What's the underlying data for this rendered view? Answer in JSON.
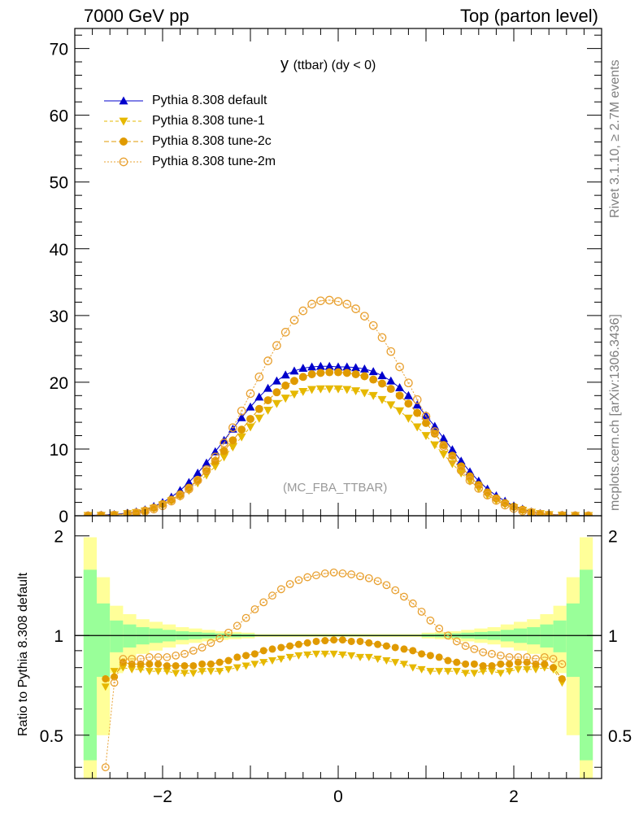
{
  "header": {
    "left": "7000 GeV pp",
    "right": "Top (parton level)"
  },
  "side_labels": {
    "rivet": "Rivet 3.1.10, ≥ 2.7M events",
    "mcplots": "mcplots.cern.ch [arXiv:1306.3436]"
  },
  "chart_data": [
    {
      "type": "line",
      "title": "y",
      "title_sub": "(ttbar) (dy < 0)",
      "annotation": "(MC_FBA_TTBAR)",
      "xlim": [
        -3.0,
        3.0
      ],
      "ylim": [
        0,
        73
      ],
      "yticks": [
        0,
        10,
        20,
        30,
        40,
        50,
        60,
        70
      ],
      "xticks": [
        -2,
        0,
        2
      ],
      "legend_position": "top-left",
      "series": [
        {
          "name": "Pythia 8.308 default",
          "color": "#0000cc",
          "marker": "triangle-up",
          "x": [
            -2.85,
            -2.7,
            -2.55,
            -2.4,
            -2.3,
            -2.2,
            -2.1,
            -2.0,
            -1.9,
            -1.8,
            -1.7,
            -1.6,
            -1.5,
            -1.4,
            -1.3,
            -1.2,
            -1.1,
            -1.0,
            -0.9,
            -0.8,
            -0.7,
            -0.6,
            -0.5,
            -0.4,
            -0.3,
            -0.2,
            -0.1,
            0.0,
            0.1,
            0.2,
            0.3,
            0.4,
            0.5,
            0.6,
            0.7,
            0.8,
            0.9,
            1.0,
            1.1,
            1.2,
            1.3,
            1.4,
            1.5,
            1.6,
            1.7,
            1.8,
            1.9,
            2.0,
            2.1,
            2.2,
            2.3,
            2.4,
            2.55,
            2.7,
            2.85
          ],
          "y": [
            0.05,
            0.1,
            0.2,
            0.4,
            0.6,
            0.9,
            1.4,
            2.0,
            2.8,
            3.8,
            5.0,
            6.4,
            7.9,
            9.6,
            11.3,
            13.0,
            14.7,
            16.3,
            17.8,
            19.1,
            20.2,
            21.1,
            21.7,
            22.1,
            22.3,
            22.4,
            22.4,
            22.3,
            22.3,
            22.2,
            22.0,
            21.6,
            21.0,
            20.2,
            19.2,
            18.0,
            16.6,
            15.0,
            13.4,
            11.6,
            9.9,
            8.2,
            6.6,
            5.2,
            4.0,
            3.0,
            2.2,
            1.5,
            1.0,
            0.6,
            0.35,
            0.2,
            0.1,
            0.05,
            0.02
          ]
        },
        {
          "name": "Pythia 8.308 tune-1",
          "color": "#e6b800",
          "marker": "triangle-down",
          "x": [
            -2.85,
            -2.7,
            -2.55,
            -2.4,
            -2.3,
            -2.2,
            -2.1,
            -2.0,
            -1.9,
            -1.8,
            -1.7,
            -1.6,
            -1.5,
            -1.4,
            -1.3,
            -1.2,
            -1.1,
            -1.0,
            -0.9,
            -0.8,
            -0.7,
            -0.6,
            -0.5,
            -0.4,
            -0.3,
            -0.2,
            -0.1,
            0.0,
            0.1,
            0.2,
            0.3,
            0.4,
            0.5,
            0.6,
            0.7,
            0.8,
            0.9,
            1.0,
            1.1,
            1.2,
            1.3,
            1.4,
            1.5,
            1.6,
            1.7,
            1.8,
            1.9,
            2.0,
            2.1,
            2.2,
            2.3,
            2.4,
            2.55,
            2.7,
            2.85
          ],
          "y": [
            0.02,
            0.05,
            0.12,
            0.3,
            0.45,
            0.7,
            1.1,
            1.6,
            2.2,
            2.9,
            3.8,
            4.9,
            6.1,
            7.4,
            8.8,
            10.3,
            11.8,
            13.3,
            14.6,
            15.8,
            16.8,
            17.6,
            18.2,
            18.6,
            18.9,
            19.0,
            19.0,
            19.0,
            18.9,
            18.7,
            18.4,
            18.0,
            17.4,
            16.6,
            15.7,
            14.6,
            13.3,
            12.0,
            10.6,
            9.2,
            7.8,
            6.4,
            5.2,
            4.1,
            3.1,
            2.3,
            1.7,
            1.2,
            0.8,
            0.5,
            0.3,
            0.15,
            0.07,
            0.03,
            0.01
          ]
        },
        {
          "name": "Pythia 8.308 tune-2c",
          "color": "#e09a00",
          "marker": "circle-filled",
          "x": [
            -2.85,
            -2.7,
            -2.55,
            -2.4,
            -2.3,
            -2.2,
            -2.1,
            -2.0,
            -1.9,
            -1.8,
            -1.7,
            -1.6,
            -1.5,
            -1.4,
            -1.3,
            -1.2,
            -1.1,
            -1.0,
            -0.9,
            -0.8,
            -0.7,
            -0.6,
            -0.5,
            -0.4,
            -0.3,
            -0.2,
            -0.1,
            0.0,
            0.1,
            0.2,
            0.3,
            0.4,
            0.5,
            0.6,
            0.7,
            0.8,
            0.9,
            1.0,
            1.1,
            1.2,
            1.3,
            1.4,
            1.5,
            1.6,
            1.7,
            1.8,
            1.9,
            2.0,
            2.1,
            2.2,
            2.3,
            2.4,
            2.55,
            2.7,
            2.85
          ],
          "y": [
            0.02,
            0.06,
            0.15,
            0.32,
            0.5,
            0.78,
            1.2,
            1.75,
            2.4,
            3.2,
            4.2,
            5.4,
            6.7,
            8.2,
            9.7,
            11.3,
            12.9,
            14.5,
            16.0,
            17.3,
            18.5,
            19.5,
            20.2,
            20.8,
            21.2,
            21.4,
            21.5,
            21.5,
            21.4,
            21.2,
            20.9,
            20.4,
            19.8,
            19.0,
            18.0,
            16.8,
            15.4,
            13.9,
            12.3,
            10.6,
            9.0,
            7.4,
            5.9,
            4.6,
            3.5,
            2.6,
            1.9,
            1.35,
            0.9,
            0.55,
            0.3,
            0.15,
            0.07,
            0.03,
            0.01
          ]
        },
        {
          "name": "Pythia 8.308 tune-2m",
          "color": "#e8a030",
          "marker": "circle-open",
          "x": [
            -2.85,
            -2.7,
            -2.55,
            -2.4,
            -2.3,
            -2.2,
            -2.1,
            -2.0,
            -1.9,
            -1.8,
            -1.7,
            -1.6,
            -1.5,
            -1.4,
            -1.3,
            -1.2,
            -1.1,
            -1.0,
            -0.9,
            -0.8,
            -0.7,
            -0.6,
            -0.5,
            -0.4,
            -0.3,
            -0.2,
            -0.1,
            0.0,
            0.1,
            0.2,
            0.3,
            0.4,
            0.5,
            0.6,
            0.7,
            0.8,
            0.9,
            1.0,
            1.1,
            1.2,
            1.3,
            1.4,
            1.5,
            1.6,
            1.7,
            1.8,
            1.9,
            2.0,
            2.1,
            2.2,
            2.3,
            2.4,
            2.55,
            2.7,
            2.85
          ],
          "y": [
            0.01,
            0.04,
            0.1,
            0.25,
            0.4,
            0.65,
            1.0,
            1.5,
            2.2,
            3.0,
            4.0,
            5.3,
            6.9,
            8.8,
            10.9,
            13.2,
            15.7,
            18.3,
            20.8,
            23.2,
            25.5,
            27.5,
            29.3,
            30.7,
            31.7,
            32.2,
            32.3,
            32.1,
            31.7,
            31.0,
            29.9,
            28.5,
            26.7,
            24.6,
            22.3,
            19.9,
            17.4,
            14.9,
            12.6,
            10.4,
            8.5,
            6.8,
            5.3,
            4.1,
            3.1,
            2.3,
            1.6,
            1.1,
            0.7,
            0.45,
            0.25,
            0.12,
            0.05,
            0.02,
            0.01
          ]
        }
      ]
    },
    {
      "type": "line",
      "ylabel": "Ratio to Pythia 8.308 default",
      "xlim": [
        -3.0,
        3.0
      ],
      "ylim": [
        0.37,
        2.3
      ],
      "ylog": true,
      "yticks": [
        0.5,
        1,
        2
      ],
      "xticks": [
        -2,
        0,
        2
      ],
      "band_edges": [
        -2.9,
        -2.75,
        -2.6,
        -2.45,
        -2.3,
        -2.15,
        -2.0,
        -1.85,
        -1.7,
        -1.55,
        -1.4,
        -1.25,
        -1.1,
        -0.95,
        0.95,
        1.1,
        1.25,
        1.4,
        1.55,
        1.7,
        1.85,
        2.0,
        2.15,
        2.3,
        2.45,
        2.6,
        2.75,
        2.9
      ],
      "band_inner": [
        0.58,
        0.25,
        0.11,
        0.08,
        0.06,
        0.05,
        0.04,
        0.03,
        0.025,
        0.02,
        0.015,
        0.012,
        0.01,
        0.005,
        0.01,
        0.012,
        0.015,
        0.02,
        0.025,
        0.03,
        0.04,
        0.05,
        0.06,
        0.08,
        0.11,
        0.25,
        0.58
      ],
      "band_outer": [
        0.98,
        0.5,
        0.23,
        0.16,
        0.12,
        0.1,
        0.08,
        0.06,
        0.05,
        0.04,
        0.03,
        0.025,
        0.02,
        0.01,
        0.02,
        0.025,
        0.03,
        0.04,
        0.05,
        0.06,
        0.08,
        0.1,
        0.12,
        0.16,
        0.23,
        0.5,
        0.98
      ],
      "series": [
        {
          "name": "Pythia 8.308 tune-1",
          "color": "#e6b800",
          "marker": "triangle-down",
          "x": [
            -2.65,
            -2.55,
            -2.45,
            -2.35,
            -2.25,
            -2.15,
            -2.05,
            -1.95,
            -1.85,
            -1.75,
            -1.65,
            -1.55,
            -1.45,
            -1.35,
            -1.25,
            -1.15,
            -1.05,
            -0.95,
            -0.85,
            -0.75,
            -0.65,
            -0.55,
            -0.45,
            -0.35,
            -0.25,
            -0.15,
            -0.05,
            0.05,
            0.15,
            0.25,
            0.35,
            0.45,
            0.55,
            0.65,
            0.75,
            0.85,
            0.95,
            1.05,
            1.15,
            1.25,
            1.35,
            1.45,
            1.55,
            1.65,
            1.75,
            1.85,
            1.95,
            2.05,
            2.15,
            2.25,
            2.35,
            2.45,
            2.55
          ],
          "y": [
            0.7,
            0.78,
            0.8,
            0.79,
            0.79,
            0.78,
            0.78,
            0.78,
            0.77,
            0.77,
            0.77,
            0.78,
            0.78,
            0.78,
            0.79,
            0.8,
            0.81,
            0.82,
            0.83,
            0.84,
            0.85,
            0.86,
            0.87,
            0.875,
            0.88,
            0.88,
            0.88,
            0.875,
            0.87,
            0.86,
            0.86,
            0.85,
            0.84,
            0.83,
            0.82,
            0.8,
            0.79,
            0.78,
            0.78,
            0.78,
            0.78,
            0.77,
            0.77,
            0.78,
            0.78,
            0.77,
            0.78,
            0.79,
            0.79,
            0.79,
            0.8,
            0.79,
            0.72
          ]
        },
        {
          "name": "Pythia 8.308 tune-2c",
          "color": "#e09a00",
          "marker": "circle-filled",
          "x": [
            -2.65,
            -2.55,
            -2.45,
            -2.35,
            -2.25,
            -2.15,
            -2.05,
            -1.95,
            -1.85,
            -1.75,
            -1.65,
            -1.55,
            -1.45,
            -1.35,
            -1.25,
            -1.15,
            -1.05,
            -0.95,
            -0.85,
            -0.75,
            -0.65,
            -0.55,
            -0.45,
            -0.35,
            -0.25,
            -0.15,
            -0.05,
            0.05,
            0.15,
            0.25,
            0.35,
            0.45,
            0.55,
            0.65,
            0.75,
            0.85,
            0.95,
            1.05,
            1.15,
            1.25,
            1.35,
            1.45,
            1.55,
            1.65,
            1.75,
            1.85,
            1.95,
            2.05,
            2.15,
            2.25,
            2.35,
            2.45,
            2.55
          ],
          "y": [
            0.74,
            0.75,
            0.83,
            0.82,
            0.82,
            0.82,
            0.82,
            0.81,
            0.81,
            0.81,
            0.81,
            0.82,
            0.82,
            0.83,
            0.84,
            0.86,
            0.87,
            0.88,
            0.9,
            0.91,
            0.92,
            0.93,
            0.94,
            0.95,
            0.96,
            0.965,
            0.97,
            0.97,
            0.96,
            0.96,
            0.95,
            0.94,
            0.93,
            0.92,
            0.91,
            0.9,
            0.88,
            0.87,
            0.86,
            0.84,
            0.83,
            0.82,
            0.82,
            0.81,
            0.81,
            0.82,
            0.82,
            0.83,
            0.83,
            0.82,
            0.82,
            0.8,
            0.74
          ]
        },
        {
          "name": "Pythia 8.308 tune-2m",
          "color": "#e8a030",
          "marker": "circle-open",
          "x": [
            -2.65,
            -2.55,
            -2.45,
            -2.35,
            -2.25,
            -2.15,
            -2.05,
            -1.95,
            -1.85,
            -1.75,
            -1.65,
            -1.55,
            -1.45,
            -1.35,
            -1.25,
            -1.15,
            -1.05,
            -0.95,
            -0.85,
            -0.75,
            -0.65,
            -0.55,
            -0.45,
            -0.35,
            -0.25,
            -0.15,
            -0.05,
            0.05,
            0.15,
            0.25,
            0.35,
            0.45,
            0.55,
            0.65,
            0.75,
            0.85,
            0.95,
            1.05,
            1.15,
            1.25,
            1.35,
            1.45,
            1.55,
            1.65,
            1.75,
            1.85,
            1.95,
            2.05,
            2.15,
            2.25,
            2.35,
            2.45,
            2.55
          ],
          "y": [
            0.4,
            0.72,
            0.85,
            0.85,
            0.85,
            0.86,
            0.86,
            0.86,
            0.87,
            0.88,
            0.9,
            0.92,
            0.95,
            0.98,
            1.02,
            1.07,
            1.13,
            1.2,
            1.26,
            1.32,
            1.38,
            1.43,
            1.47,
            1.5,
            1.52,
            1.54,
            1.55,
            1.54,
            1.53,
            1.51,
            1.49,
            1.46,
            1.42,
            1.37,
            1.31,
            1.25,
            1.18,
            1.11,
            1.05,
            1.0,
            0.96,
            0.93,
            0.91,
            0.89,
            0.88,
            0.87,
            0.86,
            0.86,
            0.86,
            0.85,
            0.86,
            0.85,
            0.82
          ]
        }
      ]
    }
  ]
}
